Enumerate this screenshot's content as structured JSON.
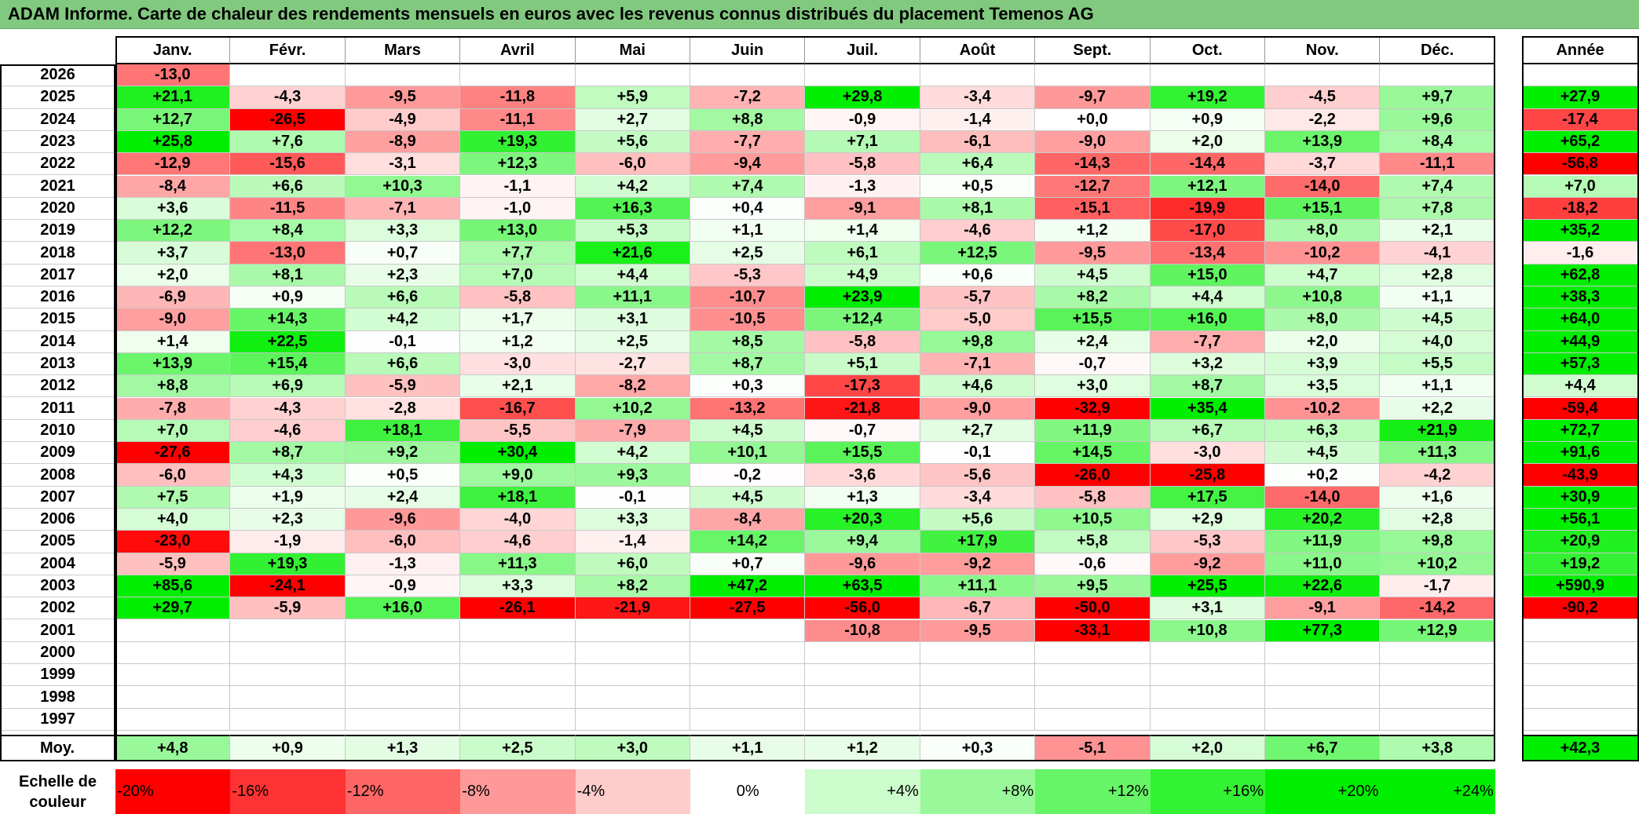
{
  "title": "ADAM Informe. Carte de chaleur des rendements mensuels en euros avec les revenus connus distribués du placement Temenos AG",
  "chart_data": {
    "type": "heatmap",
    "title": "ADAM Informe. Carte de chaleur des rendements mensuels en euros avec les revenus connus distribués du placement Temenos AG",
    "months": [
      "Janv.",
      "Févr.",
      "Mars",
      "Avril",
      "Mai",
      "Juin",
      "Juil.",
      "Août",
      "Sept.",
      "Oct.",
      "Nov.",
      "Déc."
    ],
    "year_header": "Année",
    "rows": [
      {
        "year": "2026",
        "values": [
          -13.0,
          null,
          null,
          null,
          null,
          null,
          null,
          null,
          null,
          null,
          null,
          null
        ],
        "annual": null
      },
      {
        "year": "2025",
        "values": [
          21.1,
          -4.3,
          -9.5,
          -11.8,
          5.9,
          -7.2,
          29.8,
          -3.4,
          -9.7,
          19.2,
          -4.5,
          9.7
        ],
        "annual": 27.9
      },
      {
        "year": "2024",
        "values": [
          12.7,
          -26.5,
          -4.9,
          -11.1,
          2.7,
          8.8,
          -0.9,
          -1.4,
          0.0,
          0.9,
          -2.2,
          9.6
        ],
        "annual": -17.4
      },
      {
        "year": "2023",
        "values": [
          25.8,
          7.6,
          -8.9,
          19.3,
          5.6,
          -7.7,
          7.1,
          -6.1,
          -9.0,
          2.0,
          13.9,
          8.4
        ],
        "annual": 65.2
      },
      {
        "year": "2022",
        "values": [
          -12.9,
          -15.6,
          -3.1,
          12.3,
          -6.0,
          -9.4,
          -5.8,
          6.4,
          -14.3,
          -14.4,
          -3.7,
          -11.1
        ],
        "annual": -56.8
      },
      {
        "year": "2021",
        "values": [
          -8.4,
          6.6,
          10.3,
          -1.1,
          4.2,
          7.4,
          -1.3,
          0.5,
          -12.7,
          12.1,
          -14.0,
          7.4
        ],
        "annual": 7.0
      },
      {
        "year": "2020",
        "values": [
          3.6,
          -11.5,
          -7.1,
          -1.0,
          16.3,
          0.4,
          -9.1,
          8.1,
          -15.1,
          -19.9,
          15.1,
          7.8
        ],
        "annual": -18.2
      },
      {
        "year": "2019",
        "values": [
          12.2,
          8.4,
          3.3,
          13.0,
          5.3,
          1.1,
          1.4,
          -4.6,
          1.2,
          -17.0,
          8.0,
          2.1
        ],
        "annual": 35.2
      },
      {
        "year": "2018",
        "values": [
          3.7,
          -13.0,
          0.7,
          7.7,
          21.6,
          2.5,
          6.1,
          12.5,
          -9.5,
          -13.4,
          -10.2,
          -4.1
        ],
        "annual": -1.6
      },
      {
        "year": "2017",
        "values": [
          2.0,
          8.1,
          2.3,
          7.0,
          4.4,
          -5.3,
          4.9,
          0.6,
          4.5,
          15.0,
          4.7,
          2.8
        ],
        "annual": 62.8
      },
      {
        "year": "2016",
        "values": [
          -6.9,
          0.9,
          6.6,
          -5.8,
          11.1,
          -10.7,
          23.9,
          -5.7,
          8.2,
          4.4,
          10.8,
          1.1
        ],
        "annual": 38.3
      },
      {
        "year": "2015",
        "values": [
          -9.0,
          14.3,
          4.2,
          1.7,
          3.1,
          -10.5,
          12.4,
          -5.0,
          15.5,
          16.0,
          8.0,
          4.5
        ],
        "annual": 64.0
      },
      {
        "year": "2014",
        "values": [
          1.4,
          22.5,
          -0.1,
          1.2,
          2.5,
          8.5,
          -5.8,
          9.8,
          2.4,
          -7.7,
          2.0,
          4.0
        ],
        "annual": 44.9
      },
      {
        "year": "2013",
        "values": [
          13.9,
          15.4,
          6.6,
          -3.0,
          -2.7,
          8.7,
          5.1,
          -7.1,
          -0.7,
          3.2,
          3.9,
          5.5
        ],
        "annual": 57.3
      },
      {
        "year": "2012",
        "values": [
          8.8,
          6.9,
          -5.9,
          2.1,
          -8.2,
          0.3,
          -17.3,
          4.6,
          3.0,
          8.7,
          3.5,
          1.1
        ],
        "annual": 4.4
      },
      {
        "year": "2011",
        "values": [
          -7.8,
          -4.3,
          -2.8,
          -16.7,
          10.2,
          -13.2,
          -21.8,
          -9.0,
          -32.9,
          35.4,
          -10.2,
          2.2
        ],
        "annual": -59.4
      },
      {
        "year": "2010",
        "values": [
          7.0,
          -4.6,
          18.1,
          -5.5,
          -7.9,
          4.5,
          -0.7,
          2.7,
          11.9,
          6.7,
          6.3,
          21.9
        ],
        "annual": 72.7
      },
      {
        "year": "2009",
        "values": [
          -27.6,
          8.7,
          9.2,
          30.4,
          4.2,
          10.1,
          15.5,
          -0.1,
          14.5,
          -3.0,
          4.5,
          11.3
        ],
        "annual": 91.6
      },
      {
        "year": "2008",
        "values": [
          -6.0,
          4.3,
          0.5,
          9.0,
          9.3,
          -0.2,
          -3.6,
          -5.6,
          -26.0,
          -25.8,
          0.2,
          -4.2
        ],
        "annual": -43.9
      },
      {
        "year": "2007",
        "values": [
          7.5,
          1.9,
          2.4,
          18.1,
          -0.1,
          4.5,
          1.3,
          -3.4,
          -5.8,
          17.5,
          -14.0,
          1.6
        ],
        "annual": 30.9
      },
      {
        "year": "2006",
        "values": [
          4.0,
          2.3,
          -9.6,
          -4.0,
          3.3,
          -8.4,
          20.3,
          5.6,
          10.5,
          2.9,
          20.2,
          2.8
        ],
        "annual": 56.1
      },
      {
        "year": "2005",
        "values": [
          -23.0,
          -1.9,
          -6.0,
          -4.6,
          -1.4,
          14.2,
          9.4,
          17.9,
          5.8,
          -5.3,
          11.9,
          9.8
        ],
        "annual": 20.9
      },
      {
        "year": "2004",
        "values": [
          -5.9,
          19.3,
          -1.3,
          11.3,
          6.0,
          0.7,
          -9.6,
          -9.2,
          -0.6,
          -9.2,
          11.0,
          10.2
        ],
        "annual": 19.2
      },
      {
        "year": "2003",
        "values": [
          85.6,
          -24.1,
          -0.9,
          3.3,
          8.2,
          47.2,
          63.5,
          11.1,
          9.5,
          25.5,
          22.6,
          -1.7
        ],
        "annual": 590.9
      },
      {
        "year": "2002",
        "values": [
          29.7,
          -5.9,
          16.0,
          -26.1,
          -21.9,
          -27.5,
          -56.0,
          -6.7,
          -50.0,
          3.1,
          -9.1,
          -14.2
        ],
        "annual": -90.2
      },
      {
        "year": "2001",
        "values": [
          null,
          null,
          null,
          null,
          null,
          null,
          -10.8,
          -9.5,
          -33.1,
          10.8,
          77.3,
          12.9
        ],
        "annual": null
      },
      {
        "year": "2000",
        "values": [
          null,
          null,
          null,
          null,
          null,
          null,
          null,
          null,
          null,
          null,
          null,
          null
        ],
        "annual": null
      },
      {
        "year": "1999",
        "values": [
          null,
          null,
          null,
          null,
          null,
          null,
          null,
          null,
          null,
          null,
          null,
          null
        ],
        "annual": null
      },
      {
        "year": "1998",
        "values": [
          null,
          null,
          null,
          null,
          null,
          null,
          null,
          null,
          null,
          null,
          null,
          null
        ],
        "annual": null
      },
      {
        "year": "1997",
        "values": [
          null,
          null,
          null,
          null,
          null,
          null,
          null,
          null,
          null,
          null,
          null,
          null
        ],
        "annual": null
      }
    ],
    "average": {
      "label": "Moy.",
      "values": [
        4.8,
        0.9,
        1.3,
        2.5,
        3.0,
        1.1,
        1.2,
        0.3,
        -5.1,
        2.0,
        6.7,
        3.8
      ],
      "annual": 42.3
    },
    "scale": {
      "label": "Echelle de couleur",
      "steps": [
        "-20%",
        "-16%",
        "-12%",
        "-8%",
        "-4%",
        "0%",
        "+4%",
        "+8%",
        "+12%",
        "+16%",
        "+20%",
        "+24%"
      ]
    },
    "colors": {
      "positive_max": "#00ee00",
      "negative_max": "#ff0000",
      "neutral": "#ffffff",
      "title_bg": "#82c980"
    }
  }
}
